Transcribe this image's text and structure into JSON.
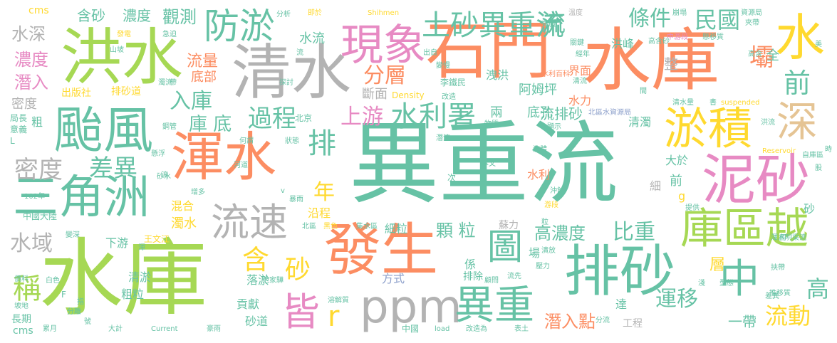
{
  "colors": {
    "teal": "#66c2a5",
    "orange": "#fc8d62",
    "blue": "#8da0cb",
    "pink": "#e78ac3",
    "green": "#a6d854",
    "yellow": "#ffd92f",
    "tan": "#e5c494",
    "gray": "#b3b3b3"
  },
  "words": [
    {
      "text": "異重流",
      "c": "teal"
    },
    {
      "text": "水庫",
      "c": "green"
    },
    {
      "text": "水庫",
      "c": "orange"
    },
    {
      "text": "石門",
      "c": "orange"
    },
    {
      "text": "洪水",
      "c": "green"
    },
    {
      "text": "清水",
      "c": "gray"
    },
    {
      "text": "發生",
      "c": "orange"
    },
    {
      "text": "渾水",
      "c": "orange"
    },
    {
      "text": "泥砂",
      "c": "pink"
    },
    {
      "text": "排砂",
      "c": "teal"
    },
    {
      "text": "颱風",
      "c": "teal"
    },
    {
      "text": "三角洲",
      "c": "teal"
    },
    {
      "text": "ppm",
      "c": "gray"
    },
    {
      "text": "庫區越",
      "c": "green"
    },
    {
      "text": "淤積",
      "c": "yellow"
    },
    {
      "text": "現象",
      "c": "pink"
    },
    {
      "text": "異重",
      "c": "teal"
    },
    {
      "text": "流速",
      "c": "gray"
    },
    {
      "text": "防淤",
      "c": "teal"
    },
    {
      "text": "土砂異重流",
      "c": "teal"
    },
    {
      "text": "水",
      "c": "yellow"
    },
    {
      "text": "深",
      "c": "tan"
    },
    {
      "text": "中",
      "c": "teal"
    },
    {
      "text": "皆",
      "c": "pink"
    },
    {
      "text": "圖",
      "c": "teal"
    },
    {
      "text": "密度",
      "c": "gray"
    },
    {
      "text": "差異",
      "c": "teal"
    },
    {
      "text": "過程",
      "c": "teal"
    },
    {
      "text": "上游",
      "c": "pink"
    },
    {
      "text": "水利署",
      "c": "teal"
    },
    {
      "text": "排",
      "c": "teal"
    },
    {
      "text": "r",
      "c": "yellow"
    },
    {
      "text": "條件",
      "c": "teal"
    },
    {
      "text": "民國",
      "c": "teal"
    },
    {
      "text": "壩",
      "c": "orange"
    },
    {
      "text": "前",
      "c": "teal"
    },
    {
      "text": "觀測",
      "c": "teal"
    },
    {
      "text": "入庫",
      "c": "teal"
    },
    {
      "text": "庫 底",
      "c": "teal"
    },
    {
      "text": "流",
      "c": "teal"
    },
    {
      "text": "分層",
      "c": "orange"
    },
    {
      "text": "水深",
      "c": "gray"
    },
    {
      "text": "濃度",
      "c": "pink"
    },
    {
      "text": "潛入",
      "c": "pink"
    },
    {
      "text": "稱",
      "c": "green"
    },
    {
      "text": "水域",
      "c": "gray"
    },
    {
      "text": "含",
      "c": "yellow"
    },
    {
      "text": "砂",
      "c": "yellow"
    },
    {
      "text": "年",
      "c": "yellow"
    },
    {
      "text": "顆 粒",
      "c": "teal"
    },
    {
      "text": "高濃度",
      "c": "teal"
    },
    {
      "text": "比重",
      "c": "teal"
    },
    {
      "text": "潛入點",
      "c": "orange"
    },
    {
      "text": "運移",
      "c": "teal"
    },
    {
      "text": "流動",
      "c": "yellow"
    },
    {
      "text": "高",
      "c": "teal"
    },
    {
      "text": "流排砂",
      "c": "teal"
    },
    {
      "text": "流量",
      "c": "orange"
    },
    {
      "text": "底部",
      "c": "orange"
    },
    {
      "text": "含砂",
      "c": "teal"
    },
    {
      "text": "濃度",
      "c": "teal"
    },
    {
      "text": "阿姆坪",
      "c": "teal"
    },
    {
      "text": "斷面",
      "c": "gray"
    },
    {
      "text": "界面",
      "c": "orange"
    },
    {
      "text": "底孔",
      "c": "teal"
    },
    {
      "text": "清濁",
      "c": "teal"
    },
    {
      "text": "兩",
      "c": "teal"
    },
    {
      "text": "洪峰",
      "c": "teal"
    },
    {
      "text": "整",
      "c": "gray"
    },
    {
      "text": "水流",
      "c": "teal"
    },
    {
      "text": "洩洪",
      "c": "teal"
    },
    {
      "text": "水力",
      "c": "orange"
    },
    {
      "text": "全",
      "c": "teal"
    },
    {
      "text": "沿程",
      "c": "yellow"
    },
    {
      "text": "細粒",
      "c": "teal"
    },
    {
      "text": "混合",
      "c": "yellow"
    },
    {
      "text": "濁水",
      "c": "yellow"
    },
    {
      "text": "下游",
      "c": "teal"
    },
    {
      "text": "清淤",
      "c": "teal"
    },
    {
      "text": "粗粒",
      "c": "teal"
    },
    {
      "text": "落淤",
      "c": "teal"
    },
    {
      "text": "貢獻",
      "c": "teal"
    },
    {
      "text": "砂道",
      "c": "teal"
    },
    {
      "text": "方式",
      "c": "blue"
    },
    {
      "text": "係",
      "c": "teal"
    },
    {
      "text": "排除",
      "c": "teal"
    },
    {
      "text": "場",
      "c": "teal"
    },
    {
      "text": "層",
      "c": "yellow"
    },
    {
      "text": "一帶",
      "c": "teal"
    },
    {
      "text": "達",
      "c": "teal"
    },
    {
      "text": "工程",
      "c": "gray"
    },
    {
      "text": "蘇力",
      "c": "gray"
    },
    {
      "text": "水利",
      "c": "orange"
    },
    {
      "text": "大於",
      "c": "teal"
    },
    {
      "text": "前",
      "c": "teal"
    },
    {
      "text": "g",
      "c": "yellow"
    },
    {
      "text": "細",
      "c": "gray"
    },
    {
      "text": "砂",
      "c": "teal"
    },
    {
      "text": "排砂道",
      "c": "yellow"
    },
    {
      "text": "出版社",
      "c": "yellow"
    },
    {
      "text": "密度",
      "c": "gray"
    },
    {
      "text": "粗",
      "c": "teal"
    },
    {
      "text": "局長",
      "c": "teal"
    },
    {
      "text": "意義",
      "c": "teal"
    },
    {
      "text": "L",
      "c": "teal"
    },
    {
      "text": "cms",
      "c": "yellow"
    },
    {
      "text": "cms",
      "c": "teal"
    },
    {
      "text": "分析",
      "c": "teal"
    },
    {
      "text": "即於",
      "c": "yellow"
    },
    {
      "text": "Shihmen",
      "c": "yellow"
    },
    {
      "text": "溫度",
      "c": "gray"
    },
    {
      "text": "崩塌",
      "c": "teal"
    },
    {
      "text": "資源局",
      "c": "teal"
    },
    {
      "text": "夾帶",
      "c": "teal"
    },
    {
      "text": "美",
      "c": "teal"
    },
    {
      "text": "中游段",
      "c": "pink"
    },
    {
      "text": "懸移質",
      "c": "teal"
    },
    {
      "text": "高含砂",
      "c": "teal"
    },
    {
      "text": "關鍵",
      "c": "teal"
    },
    {
      "text": "經年",
      "c": "teal"
    },
    {
      "text": "高含",
      "c": "teal"
    },
    {
      "text": "發電",
      "c": "yellow"
    },
    {
      "text": "急迫",
      "c": "teal"
    },
    {
      "text": "山坡",
      "c": "teal"
    },
    {
      "text": "流",
      "c": "teal"
    },
    {
      "text": "出自",
      "c": "teal"
    },
    {
      "text": "變慢",
      "c": "teal"
    },
    {
      "text": "水利百科",
      "c": "orange"
    },
    {
      "text": "李鐵民",
      "c": "teal"
    },
    {
      "text": "Density",
      "c": "yellow"
    },
    {
      "text": "改造",
      "c": "teal"
    },
    {
      "text": "清流",
      "c": "teal"
    },
    {
      "text": "濁流",
      "c": "teal"
    },
    {
      "text": "帶",
      "c": "teal"
    },
    {
      "text": "探討",
      "c": "teal"
    },
    {
      "text": "間",
      "c": "teal"
    },
    {
      "text": "清水量",
      "c": "teal"
    },
    {
      "text": "書",
      "c": "teal"
    },
    {
      "text": "suspended",
      "c": "yellow"
    },
    {
      "text": "北京",
      "c": "teal"
    },
    {
      "text": "物質",
      "c": "teal"
    },
    {
      "text": "顯示",
      "c": "teal"
    },
    {
      "text": "北區水資源局",
      "c": "blue"
    },
    {
      "text": "洪流",
      "c": "teal"
    },
    {
      "text": "鋼管",
      "c": "teal"
    },
    {
      "text": "何謂",
      "c": "teal"
    },
    {
      "text": "狀態",
      "c": "teal"
    },
    {
      "text": "潛流",
      "c": "teal"
    },
    {
      "text": "流體",
      "c": "teal"
    },
    {
      "text": "Reservoir",
      "c": "yellow"
    },
    {
      "text": "自庫區",
      "c": "teal"
    },
    {
      "text": "時",
      "c": "teal"
    },
    {
      "text": "股",
      "c": "teal"
    },
    {
      "text": "懸浮",
      "c": "teal"
    },
    {
      "text": "砂水",
      "c": "teal"
    },
    {
      "text": "河道",
      "c": "teal"
    },
    {
      "text": "本文",
      "c": "teal"
    },
    {
      "text": "次",
      "c": "teal"
    },
    {
      "text": "沖蝕",
      "c": "teal"
    },
    {
      "text": "游段",
      "c": "yellow"
    },
    {
      "text": "增多",
      "c": "teal"
    },
    {
      "text": "v",
      "c": "teal"
    },
    {
      "text": "暴雨",
      "c": "teal"
    },
    {
      "text": "提供",
      "c": "teal"
    },
    {
      "text": "102年",
      "c": "teal"
    },
    {
      "text": "中國大陸",
      "c": "teal"
    },
    {
      "text": "北區",
      "c": "teal"
    },
    {
      "text": "黑色",
      "c": "yellow"
    },
    {
      "text": "集水區",
      "c": "teal"
    },
    {
      "text": "粒",
      "c": "teal"
    },
    {
      "text": "王文江",
      "c": "yellow"
    },
    {
      "text": "變深",
      "c": "teal"
    },
    {
      "text": "渾",
      "c": "teal"
    },
    {
      "text": "渾水明渠流",
      "c": "teal"
    },
    {
      "text": "潰放",
      "c": "teal"
    },
    {
      "text": "壓力",
      "c": "teal"
    },
    {
      "text": "挾帶",
      "c": "teal"
    },
    {
      "text": "價料",
      "c": "teal"
    },
    {
      "text": "白色",
      "c": "teal"
    },
    {
      "text": "范家驊",
      "c": "teal"
    },
    {
      "text": "溶解質",
      "c": "teal"
    },
    {
      "text": "顧問",
      "c": "teal"
    },
    {
      "text": "流先",
      "c": "teal"
    },
    {
      "text": "淺",
      "c": "teal"
    },
    {
      "text": "型態",
      "c": "teal"
    },
    {
      "text": "推移質",
      "c": "teal"
    },
    {
      "text": "F",
      "c": "teal"
    },
    {
      "text": "指",
      "c": "teal"
    },
    {
      "text": "坡地",
      "c": "teal"
    },
    {
      "text": "分離",
      "c": "teal"
    },
    {
      "text": "長期",
      "c": "teal"
    },
    {
      "text": "累月",
      "c": "teal"
    },
    {
      "text": "號",
      "c": "teal"
    },
    {
      "text": "大計",
      "c": "teal"
    },
    {
      "text": "Current",
      "c": "teal"
    },
    {
      "text": "豪雨",
      "c": "teal"
    },
    {
      "text": "中國",
      "c": "teal"
    },
    {
      "text": "load",
      "c": "teal"
    },
    {
      "text": "改造為",
      "c": "teal"
    },
    {
      "text": "表土",
      "c": "teal"
    },
    {
      "text": "分流",
      "c": "teal"
    },
    {
      "text": "差異",
      "c": "teal"
    },
    {
      "text": "寬廣",
      "c": "teal"
    },
    {
      "text": "流",
      "c": "teal"
    },
    {
      "text": "用",
      "c": "teal"
    }
  ]
}
